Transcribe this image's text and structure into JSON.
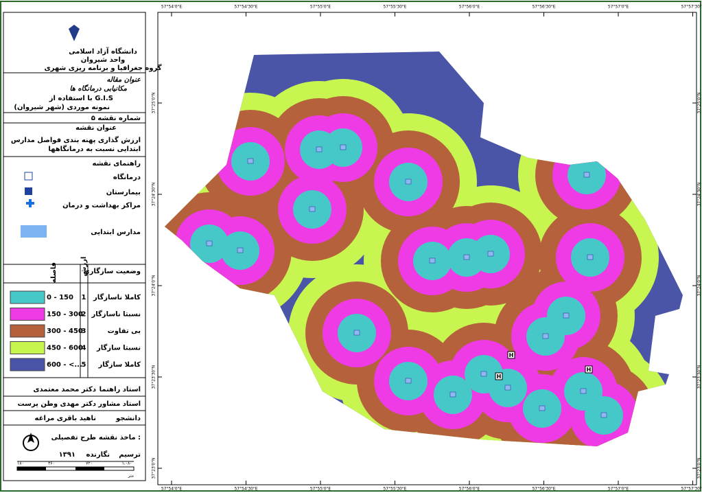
{
  "header": {
    "university": "دانشگاه آزاد اسلامی",
    "branch": "واحد شیروان",
    "department": "گروه جغرافیا و برنامه ریزی شهری"
  },
  "article": {
    "heading": "عنوان مقاله",
    "title": "مکانیابی درمانگاه ها",
    "method": "با استفاده از G.I.S",
    "case": "نمونه موردی (شهر شیروان)"
  },
  "map_number": "شماره نقشه ۵",
  "map_title": {
    "heading": "عنوان نقشه",
    "line1": "ارزش گذاری پهنه بندی فواصل مدارس",
    "line2": "ابتدایی نسبت به درمانگاهها"
  },
  "legend": {
    "title": "راهنمای نقشه",
    "clinic": "درمانگاه",
    "hospital": "بیمارستان",
    "health_center": "مراکز بهداشت و درمان",
    "schools": "مدارس ابتدایی"
  },
  "classes": {
    "distance_header": "فاصله",
    "value_header": "ارزش",
    "suitability_header": "وضعیت سازگاری",
    "rows": [
      {
        "range": "0 - 150",
        "value": "1",
        "suitability": "کاملا ناسازگار",
        "color": "#47c8c8"
      },
      {
        "range": "150 - 300",
        "value": "2",
        "suitability": "نسبتا ناسازگار",
        "color": "#ee3be6"
      },
      {
        "range": "300 - 450",
        "value": "3",
        "suitability": "بی تفاوت",
        "color": "#b5613c"
      },
      {
        "range": "450 - 600",
        "value": "4",
        "suitability": "نسبتا سازگار",
        "color": "#c8f550"
      },
      {
        "range": "600 - <...",
        "value": "5",
        "suitability": "کاملا سازگار",
        "color": "#4a55a8"
      }
    ]
  },
  "credits": [
    {
      "role": "استاد راهنما",
      "name": "دکتر محمد معتمدی"
    },
    {
      "role": "استاد مشاور",
      "name": "دکتر مهدی وطن پرست"
    },
    {
      "role": "دانشجو",
      "name": "ناهید باقری مراغه"
    }
  ],
  "source": {
    "label": "ماخذ نقشه :",
    "value": "طرح تفصیلی",
    "drawn_label": "ترسیم",
    "drawn_by": "نگارنده",
    "year": "۱۳۹۱"
  },
  "scale": {
    "labels": [
      "۱۸۰",
      "۳۶۰",
      "۷۲۰",
      "۱،۰۸۰"
    ],
    "unit": "متر"
  },
  "coordinates": {
    "longitude": [
      "57°54'0\"E",
      "57°54'30\"E",
      "57°55'0\"E",
      "57°55'30\"E",
      "57°56'0\"E",
      "57°56'30\"E",
      "57°57'0\"E",
      "57°57'30\"E"
    ],
    "latitude": [
      "37°25'0\"N",
      "37°24'30\"N",
      "37°24'0\"N",
      "37°23'30\"N",
      "37°23'0\"N"
    ]
  }
}
